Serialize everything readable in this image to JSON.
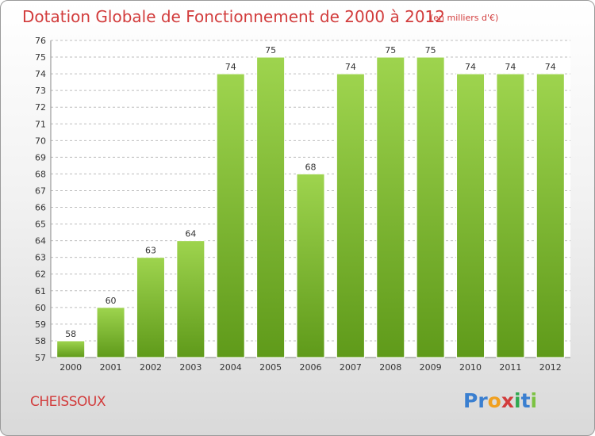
{
  "header": {
    "title": "Dotation Globale de Fonctionnement de 2000 à 2012",
    "unit": "(en milliers d'€)"
  },
  "footer": {
    "commune": "CHEISSOUX",
    "logo": {
      "letters": [
        "P",
        "r",
        "o",
        "x",
        "i",
        "t",
        "i"
      ],
      "colors": [
        "#3a7fd0",
        "#3a7fd0",
        "#f0a020",
        "#d23c3c",
        "#2fa84f",
        "#3a7fd0",
        "#7cc242"
      ]
    }
  },
  "colors": {
    "accent_text": "#d23c3c",
    "bar_light": "#9ed44e",
    "bar_dark": "#5f9a1a",
    "grid": "#bdbdbd",
    "axis_text": "#333333"
  },
  "chart_data": {
    "type": "bar",
    "categories": [
      "2000",
      "2001",
      "2002",
      "2003",
      "2004",
      "2005",
      "2006",
      "2007",
      "2008",
      "2009",
      "2010",
      "2011",
      "2012"
    ],
    "values": [
      58,
      60,
      63,
      64,
      74,
      75,
      68,
      74,
      75,
      75,
      74,
      74,
      74
    ],
    "ylim": [
      57,
      76
    ],
    "yticks": [
      57,
      58,
      59,
      60,
      61,
      62,
      63,
      64,
      65,
      66,
      67,
      68,
      69,
      70,
      71,
      72,
      73,
      74,
      75,
      76
    ],
    "grid": true,
    "legend": "none"
  }
}
